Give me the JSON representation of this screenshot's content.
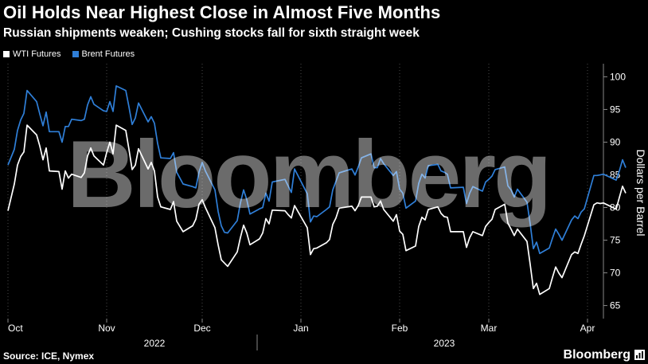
{
  "header": {
    "title": "Oil Holds Near Highest Close in Almost Five Months",
    "subtitle": "Russian shipments weaken; Cushing stocks fall for sixth straight week"
  },
  "footer": {
    "source": "Source: ICE, Nymex",
    "brand": "Bloomberg"
  },
  "watermark": "Bloomberg",
  "colors": {
    "background": "#000000",
    "wti": "#ffffff",
    "brent": "#2f7fd8",
    "grid": "#444444"
  },
  "chart_data": {
    "type": "line",
    "ylabel": "Dollars per Barrel",
    "ylim": [
      63,
      102
    ],
    "yticks": [
      65,
      70,
      75,
      80,
      85,
      90,
      95,
      100
    ],
    "xlim": [
      "2022-10-01",
      "2023-04-03"
    ],
    "month_ticks": [
      {
        "label": "Oct",
        "date": "2022-10-01"
      },
      {
        "label": "Nov",
        "date": "2022-11-01"
      },
      {
        "label": "Dec",
        "date": "2022-12-01"
      },
      {
        "label": "Jan",
        "date": "2023-01-01"
      },
      {
        "label": "Feb",
        "date": "2023-02-01"
      },
      {
        "label": "Mar",
        "date": "2023-03-01"
      },
      {
        "label": "Apr",
        "date": "2023-04-01"
      }
    ],
    "year_labels": [
      {
        "label": "2022",
        "date": "2022-11-16"
      },
      {
        "label": "2023",
        "date": "2023-02-15"
      }
    ],
    "year_divider": "2023-01-01",
    "legend_position": "top-left",
    "grid": "vertical-dotted",
    "series": [
      {
        "name": "WTI Futures",
        "color": "#ffffff",
        "points": [
          [
            "2022-10-01",
            79.5
          ],
          [
            "2022-10-03",
            83.6
          ],
          [
            "2022-10-04",
            86.5
          ],
          [
            "2022-10-05",
            87.8
          ],
          [
            "2022-10-06",
            88.5
          ],
          [
            "2022-10-07",
            92.6
          ],
          [
            "2022-10-10",
            91.1
          ],
          [
            "2022-10-11",
            89.4
          ],
          [
            "2022-10-12",
            87.3
          ],
          [
            "2022-10-13",
            89.1
          ],
          [
            "2022-10-14",
            85.6
          ],
          [
            "2022-10-17",
            85.5
          ],
          [
            "2022-10-18",
            82.8
          ],
          [
            "2022-10-19",
            85.6
          ],
          [
            "2022-10-20",
            84.5
          ],
          [
            "2022-10-21",
            85.1
          ],
          [
            "2022-10-24",
            84.6
          ],
          [
            "2022-10-25",
            85.3
          ],
          [
            "2022-10-26",
            87.9
          ],
          [
            "2022-10-27",
            89.1
          ],
          [
            "2022-10-28",
            87.9
          ],
          [
            "2022-10-31",
            86.5
          ],
          [
            "2022-11-01",
            88.4
          ],
          [
            "2022-11-02",
            90.0
          ],
          [
            "2022-11-03",
            88.2
          ],
          [
            "2022-11-04",
            92.6
          ],
          [
            "2022-11-07",
            91.8
          ],
          [
            "2022-11-08",
            88.9
          ],
          [
            "2022-11-09",
            85.8
          ],
          [
            "2022-11-10",
            86.5
          ],
          [
            "2022-11-11",
            89.0
          ],
          [
            "2022-11-14",
            85.9
          ],
          [
            "2022-11-15",
            86.9
          ],
          [
            "2022-11-16",
            85.6
          ],
          [
            "2022-11-17",
            81.6
          ],
          [
            "2022-11-18",
            80.1
          ],
          [
            "2022-11-21",
            79.7
          ],
          [
            "2022-11-22",
            80.9
          ],
          [
            "2022-11-23",
            77.9
          ],
          [
            "2022-11-25",
            76.3
          ],
          [
            "2022-11-28",
            77.2
          ],
          [
            "2022-11-29",
            78.2
          ],
          [
            "2022-11-30",
            80.5
          ],
          [
            "2022-12-01",
            81.2
          ],
          [
            "2022-12-02",
            80.0
          ],
          [
            "2022-12-05",
            76.9
          ],
          [
            "2022-12-06",
            74.3
          ],
          [
            "2022-12-07",
            72.0
          ],
          [
            "2022-12-08",
            71.5
          ],
          [
            "2022-12-09",
            71.0
          ],
          [
            "2022-12-12",
            73.2
          ],
          [
            "2022-12-13",
            75.4
          ],
          [
            "2022-12-14",
            77.3
          ],
          [
            "2022-12-15",
            76.1
          ],
          [
            "2022-12-16",
            74.3
          ],
          [
            "2022-12-19",
            75.2
          ],
          [
            "2022-12-20",
            76.1
          ],
          [
            "2022-12-21",
            78.3
          ],
          [
            "2022-12-22",
            77.5
          ],
          [
            "2022-12-23",
            79.6
          ],
          [
            "2022-12-27",
            79.5
          ],
          [
            "2022-12-28",
            78.9
          ],
          [
            "2022-12-29",
            78.4
          ],
          [
            "2022-12-30",
            80.3
          ],
          [
            "2023-01-03",
            76.9
          ],
          [
            "2023-01-04",
            72.8
          ],
          [
            "2023-01-05",
            73.7
          ],
          [
            "2023-01-06",
            73.8
          ],
          [
            "2023-01-09",
            74.6
          ],
          [
            "2023-01-10",
            75.1
          ],
          [
            "2023-01-11",
            77.4
          ],
          [
            "2023-01-12",
            78.4
          ],
          [
            "2023-01-13",
            79.9
          ],
          [
            "2023-01-17",
            80.2
          ],
          [
            "2023-01-18",
            79.5
          ],
          [
            "2023-01-19",
            80.3
          ],
          [
            "2023-01-20",
            81.6
          ],
          [
            "2023-01-23",
            81.6
          ],
          [
            "2023-01-24",
            80.1
          ],
          [
            "2023-01-25",
            80.2
          ],
          [
            "2023-01-26",
            81.0
          ],
          [
            "2023-01-27",
            79.7
          ],
          [
            "2023-01-30",
            77.9
          ],
          [
            "2023-01-31",
            78.9
          ],
          [
            "2023-02-01",
            76.4
          ],
          [
            "2023-02-02",
            75.9
          ],
          [
            "2023-02-03",
            73.4
          ],
          [
            "2023-02-06",
            74.1
          ],
          [
            "2023-02-07",
            77.1
          ],
          [
            "2023-02-08",
            78.5
          ],
          [
            "2023-02-09",
            78.1
          ],
          [
            "2023-02-10",
            79.7
          ],
          [
            "2023-02-13",
            80.1
          ],
          [
            "2023-02-14",
            79.1
          ],
          [
            "2023-02-15",
            78.6
          ],
          [
            "2023-02-16",
            78.5
          ],
          [
            "2023-02-17",
            76.3
          ],
          [
            "2023-02-21",
            76.3
          ],
          [
            "2023-02-22",
            73.9
          ],
          [
            "2023-02-23",
            75.4
          ],
          [
            "2023-02-24",
            76.3
          ],
          [
            "2023-02-27",
            75.7
          ],
          [
            "2023-02-28",
            77.1
          ],
          [
            "2023-03-01",
            77.7
          ],
          [
            "2023-03-02",
            78.2
          ],
          [
            "2023-03-03",
            79.7
          ],
          [
            "2023-03-06",
            80.5
          ],
          [
            "2023-03-07",
            77.6
          ],
          [
            "2023-03-08",
            76.7
          ],
          [
            "2023-03-09",
            75.7
          ],
          [
            "2023-03-10",
            76.7
          ],
          [
            "2023-03-13",
            74.8
          ],
          [
            "2023-03-14",
            71.3
          ],
          [
            "2023-03-15",
            67.6
          ],
          [
            "2023-03-16",
            68.4
          ],
          [
            "2023-03-17",
            66.7
          ],
          [
            "2023-03-20",
            67.6
          ],
          [
            "2023-03-21",
            69.3
          ],
          [
            "2023-03-22",
            70.9
          ],
          [
            "2023-03-23",
            69.96
          ],
          [
            "2023-03-24",
            69.26
          ],
          [
            "2023-03-27",
            72.8
          ],
          [
            "2023-03-28",
            73.2
          ],
          [
            "2023-03-29",
            72.97
          ],
          [
            "2023-03-30",
            74.37
          ],
          [
            "2023-03-31",
            75.67
          ],
          [
            "2023-04-03",
            80.42
          ],
          [
            "2023-04-04",
            80.71
          ],
          [
            "2023-04-05",
            80.61
          ],
          [
            "2023-04-06",
            80.7
          ],
          [
            "2023-04-10",
            79.74
          ],
          [
            "2023-04-11",
            81.53
          ],
          [
            "2023-04-12",
            83.26
          ],
          [
            "2023-04-13",
            82.2
          ]
        ]
      },
      {
        "name": "Brent Futures",
        "color": "#2f7fd8",
        "points": [
          [
            "2022-10-01",
            86.5
          ],
          [
            "2022-10-03",
            88.9
          ],
          [
            "2022-10-04",
            91.8
          ],
          [
            "2022-10-05",
            93.4
          ],
          [
            "2022-10-06",
            94.4
          ],
          [
            "2022-10-07",
            97.9
          ],
          [
            "2022-10-10",
            96.2
          ],
          [
            "2022-10-11",
            94.3
          ],
          [
            "2022-10-12",
            92.5
          ],
          [
            "2022-10-13",
            94.6
          ],
          [
            "2022-10-14",
            91.6
          ],
          [
            "2022-10-17",
            91.6
          ],
          [
            "2022-10-18",
            90.0
          ],
          [
            "2022-10-19",
            92.4
          ],
          [
            "2022-10-20",
            92.4
          ],
          [
            "2022-10-21",
            93.5
          ],
          [
            "2022-10-24",
            93.3
          ],
          [
            "2022-10-25",
            93.5
          ],
          [
            "2022-10-26",
            95.7
          ],
          [
            "2022-10-27",
            96.96
          ],
          [
            "2022-10-28",
            95.8
          ],
          [
            "2022-10-31",
            94.8
          ],
          [
            "2022-11-01",
            94.7
          ],
          [
            "2022-11-02",
            96.2
          ],
          [
            "2022-11-03",
            94.7
          ],
          [
            "2022-11-04",
            98.6
          ],
          [
            "2022-11-07",
            97.9
          ],
          [
            "2022-11-08",
            95.4
          ],
          [
            "2022-11-09",
            92.7
          ],
          [
            "2022-11-10",
            93.7
          ],
          [
            "2022-11-11",
            95.99
          ],
          [
            "2022-11-14",
            93.1
          ],
          [
            "2022-11-15",
            93.9
          ],
          [
            "2022-11-16",
            92.9
          ],
          [
            "2022-11-17",
            89.8
          ],
          [
            "2022-11-18",
            87.6
          ],
          [
            "2022-11-21",
            87.5
          ],
          [
            "2022-11-22",
            88.4
          ],
          [
            "2022-11-23",
            85.4
          ],
          [
            "2022-11-25",
            83.6
          ],
          [
            "2022-11-28",
            83.2
          ],
          [
            "2022-11-29",
            83.0
          ],
          [
            "2022-11-30",
            85.4
          ],
          [
            "2022-12-01",
            86.9
          ],
          [
            "2022-12-02",
            85.6
          ],
          [
            "2022-12-05",
            82.7
          ],
          [
            "2022-12-06",
            79.4
          ],
          [
            "2022-12-07",
            77.2
          ],
          [
            "2022-12-08",
            76.2
          ],
          [
            "2022-12-09",
            76.1
          ],
          [
            "2022-12-12",
            77.99
          ],
          [
            "2022-12-13",
            80.7
          ],
          [
            "2022-12-14",
            82.7
          ],
          [
            "2022-12-15",
            81.2
          ],
          [
            "2022-12-16",
            79.0
          ],
          [
            "2022-12-19",
            79.8
          ],
          [
            "2022-12-20",
            79.99
          ],
          [
            "2022-12-21",
            82.2
          ],
          [
            "2022-12-22",
            80.98
          ],
          [
            "2022-12-23",
            83.9
          ],
          [
            "2022-12-27",
            84.3
          ],
          [
            "2022-12-28",
            83.3
          ],
          [
            "2022-12-29",
            82.3
          ],
          [
            "2022-12-30",
            85.9
          ],
          [
            "2023-01-03",
            82.1
          ],
          [
            "2023-01-04",
            77.8
          ],
          [
            "2023-01-05",
            78.7
          ],
          [
            "2023-01-06",
            78.6
          ],
          [
            "2023-01-09",
            79.7
          ],
          [
            "2023-01-10",
            80.1
          ],
          [
            "2023-01-11",
            82.7
          ],
          [
            "2023-01-12",
            84.0
          ],
          [
            "2023-01-13",
            85.3
          ],
          [
            "2023-01-17",
            85.9
          ],
          [
            "2023-01-18",
            84.98
          ],
          [
            "2023-01-19",
            86.2
          ],
          [
            "2023-01-20",
            87.6
          ],
          [
            "2023-01-23",
            88.2
          ],
          [
            "2023-01-24",
            86.1
          ],
          [
            "2023-01-25",
            86.1
          ],
          [
            "2023-01-26",
            87.5
          ],
          [
            "2023-01-27",
            86.7
          ],
          [
            "2023-01-30",
            84.9
          ],
          [
            "2023-01-31",
            85.5
          ],
          [
            "2023-02-01",
            82.8
          ],
          [
            "2023-02-02",
            82.2
          ],
          [
            "2023-02-03",
            79.9
          ],
          [
            "2023-02-06",
            80.99
          ],
          [
            "2023-02-07",
            83.7
          ],
          [
            "2023-02-08",
            85.1
          ],
          [
            "2023-02-09",
            84.5
          ],
          [
            "2023-02-10",
            86.4
          ],
          [
            "2023-02-13",
            86.6
          ],
          [
            "2023-02-14",
            85.6
          ],
          [
            "2023-02-15",
            85.4
          ],
          [
            "2023-02-16",
            85.1
          ],
          [
            "2023-02-17",
            83.0
          ],
          [
            "2023-02-21",
            83.1
          ],
          [
            "2023-02-22",
            80.6
          ],
          [
            "2023-02-23",
            82.2
          ],
          [
            "2023-02-24",
            83.2
          ],
          [
            "2023-02-27",
            82.5
          ],
          [
            "2023-02-28",
            83.9
          ],
          [
            "2023-03-01",
            84.3
          ],
          [
            "2023-03-02",
            84.8
          ],
          [
            "2023-03-03",
            85.8
          ],
          [
            "2023-03-06",
            86.2
          ],
          [
            "2023-03-07",
            83.3
          ],
          [
            "2023-03-08",
            82.7
          ],
          [
            "2023-03-09",
            81.6
          ],
          [
            "2023-03-10",
            82.8
          ],
          [
            "2023-03-13",
            80.8
          ],
          [
            "2023-03-14",
            77.5
          ],
          [
            "2023-03-15",
            73.7
          ],
          [
            "2023-03-16",
            74.7
          ],
          [
            "2023-03-17",
            72.97
          ],
          [
            "2023-03-20",
            73.8
          ],
          [
            "2023-03-21",
            75.3
          ],
          [
            "2023-03-22",
            76.7
          ],
          [
            "2023-03-23",
            75.9
          ],
          [
            "2023-03-24",
            74.99
          ],
          [
            "2023-03-27",
            78.1
          ],
          [
            "2023-03-28",
            78.7
          ],
          [
            "2023-03-29",
            78.3
          ],
          [
            "2023-03-30",
            79.3
          ],
          [
            "2023-03-31",
            79.8
          ],
          [
            "2023-04-03",
            84.9
          ],
          [
            "2023-04-04",
            84.9
          ],
          [
            "2023-04-05",
            84.99
          ],
          [
            "2023-04-06",
            85.1
          ],
          [
            "2023-04-10",
            84.2
          ],
          [
            "2023-04-11",
            85.6
          ],
          [
            "2023-04-12",
            87.3
          ],
          [
            "2023-04-13",
            86.1
          ]
        ]
      }
    ]
  }
}
